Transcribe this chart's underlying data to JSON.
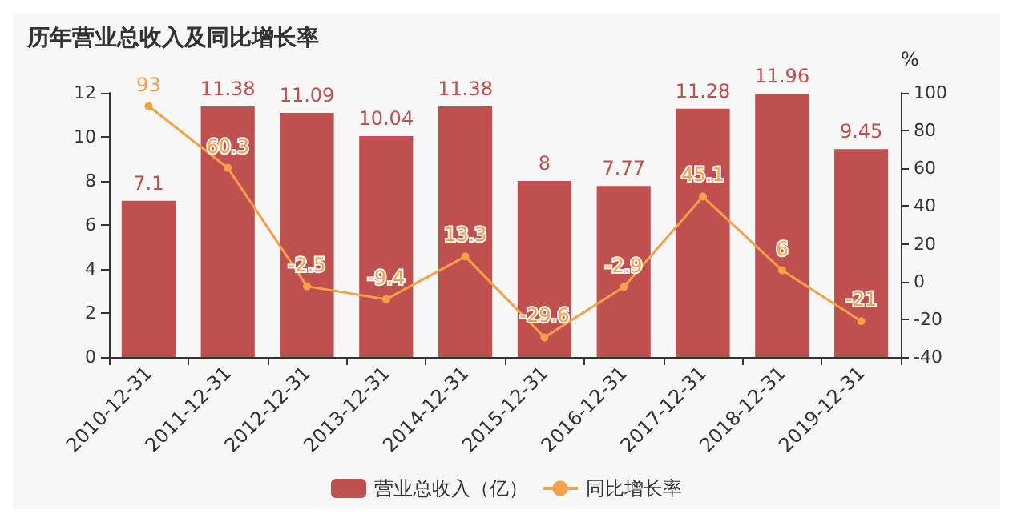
{
  "chart_data": {
    "type": "bar",
    "title": "历年营业总收入及同比增长率",
    "y2label": "%",
    "categories": [
      "2010-12-31",
      "2011-12-31",
      "2012-12-31",
      "2013-12-31",
      "2014-12-31",
      "2015-12-31",
      "2016-12-31",
      "2017-12-31",
      "2018-12-31",
      "2019-12-31"
    ],
    "series": [
      {
        "name": "营业总收入（亿）",
        "color": "#c0504d",
        "values": [
          7.1,
          11.38,
          11.09,
          10.04,
          11.38,
          8,
          7.77,
          11.28,
          11.96,
          9.45
        ]
      },
      {
        "name": "同比增长率",
        "type": "line",
        "axis": "y2",
        "color": "#f5a04a",
        "values": [
          93,
          60.3,
          -2.5,
          -9.4,
          13.3,
          -29.6,
          -2.9,
          45.1,
          6,
          -21
        ]
      }
    ],
    "ylim": [
      0,
      12
    ],
    "yticks": [
      0,
      2,
      4,
      6,
      8,
      10,
      12
    ],
    "y2lim": [
      -40,
      100
    ],
    "y2ticks": [
      -40,
      -20,
      0,
      20,
      40,
      60,
      80,
      100
    ],
    "data_labels": true,
    "grid": false,
    "legend": "bottom",
    "marker": "circle",
    "line_style": "solid"
  }
}
